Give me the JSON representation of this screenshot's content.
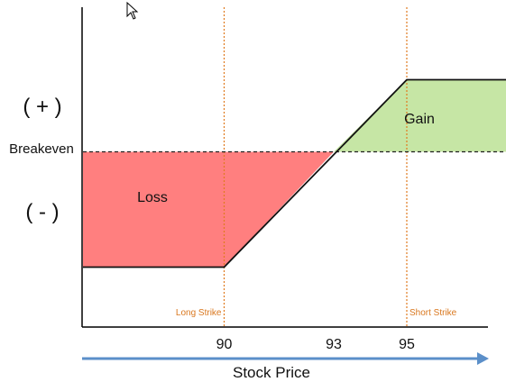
{
  "chart_data": {
    "type": "area",
    "title": "",
    "xlabel": "Stock Price",
    "ylabel": "",
    "x_ticks": [
      90,
      93,
      95
    ],
    "y_labels": {
      "positive": "( + )",
      "breakeven": "Breakeven",
      "negative": "( - )"
    },
    "xlim": [
      84,
      99
    ],
    "ylim": [
      -3.4,
      3.4
    ],
    "payoff": [
      {
        "x": 84,
        "y": -2
      },
      {
        "x": 90,
        "y": -2
      },
      {
        "x": 95,
        "y": 1.25
      },
      {
        "x": 98.8,
        "y": 1.25
      }
    ],
    "breakeven_x": 93,
    "long_strike": {
      "x": 90,
      "label": "Long Strike"
    },
    "short_strike": {
      "x": 95,
      "label": "Short Strike"
    },
    "regions": [
      {
        "name": "Loss",
        "label": "Loss",
        "color": "#ff7f7f"
      },
      {
        "name": "Gain",
        "label": "Gain",
        "color": "#c6e6a5"
      }
    ],
    "colors": {
      "strike_line": "#e07a1f",
      "strike_text": "#d9771e",
      "axis": "#000000",
      "arrow": "#5b8fc9"
    }
  }
}
